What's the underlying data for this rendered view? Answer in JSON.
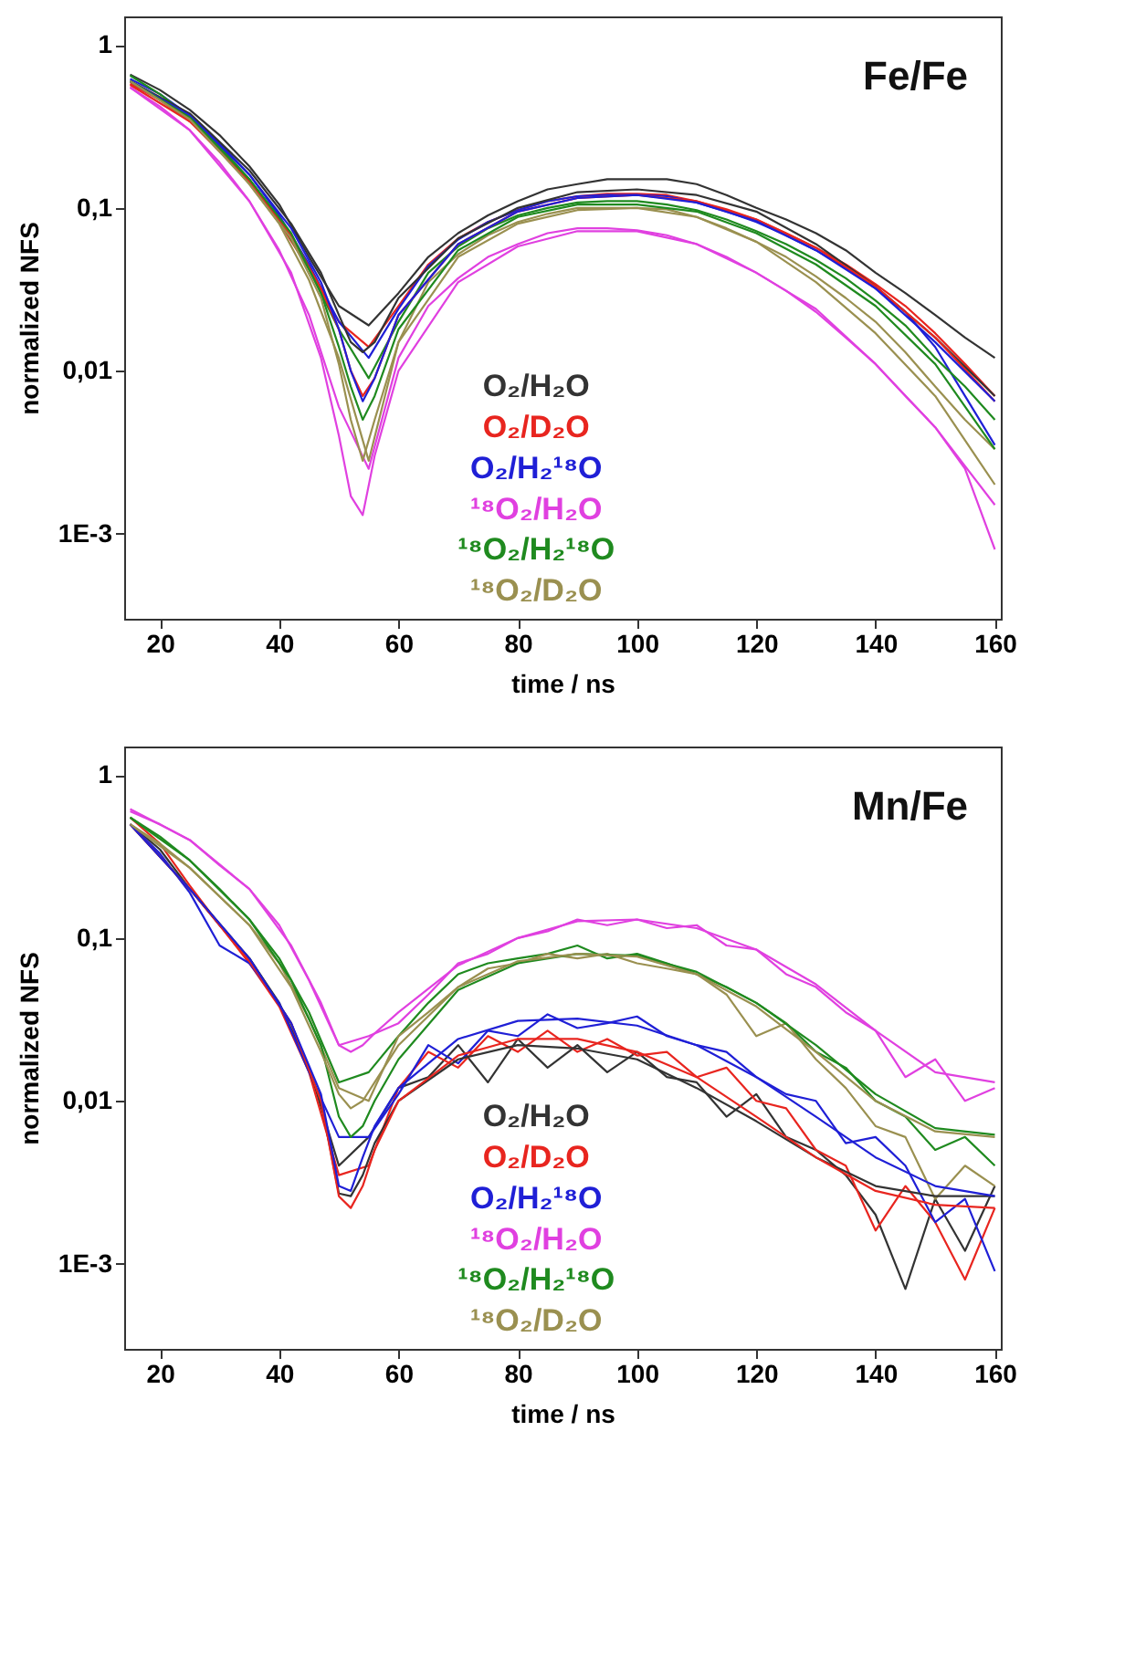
{
  "chart_data": [
    {
      "type": "line",
      "title": "Fe/Fe",
      "xlabel": "time / ns",
      "ylabel": "normalized NFS",
      "log": true,
      "grid": false,
      "xlim": [
        14,
        161
      ],
      "xticks": [
        20,
        40,
        60,
        80,
        100,
        120,
        140,
        160
      ],
      "ylim": [
        0.0003,
        1.5
      ],
      "yticks": [
        {
          "value": 1,
          "label": "1"
        },
        {
          "value": 0.1,
          "label": "0,1"
        },
        {
          "value": 0.01,
          "label": "0,01"
        },
        {
          "value": 0.001,
          "label": "1E-3"
        }
      ],
      "x": [
        15,
        20,
        25,
        30,
        35,
        40,
        45,
        50,
        55,
        60,
        65,
        70,
        75,
        80,
        85,
        90,
        95,
        100,
        105,
        110,
        115,
        120,
        125,
        130,
        135,
        140,
        145,
        150,
        155,
        160
      ],
      "series": [
        {
          "name": "O₂/H₂O",
          "color": "#333333",
          "values": [
            0.66,
            0.53,
            0.4,
            0.28,
            0.18,
            0.105,
            0.05,
            0.025,
            0.019,
            0.03,
            0.05,
            0.07,
            0.09,
            0.11,
            0.13,
            0.14,
            0.15,
            0.15,
            0.15,
            0.14,
            0.12,
            0.1,
            0.085,
            0.07,
            0.055,
            0.04,
            0.03,
            0.022,
            0.016,
            0.012
          ]
        },
        {
          "name": "O₂/D₂O",
          "color": "#e8251f",
          "values": [
            0.58,
            0.46,
            0.34,
            0.23,
            0.145,
            0.082,
            0.042,
            0.02,
            0.014,
            0.025,
            0.045,
            0.065,
            0.082,
            0.097,
            0.11,
            0.118,
            0.122,
            0.122,
            0.12,
            0.11,
            0.098,
            0.085,
            0.07,
            0.057,
            0.045,
            0.034,
            0.025,
            0.017,
            0.011,
            0.007
          ]
        },
        {
          "name": "O₂/H₂¹⁸O",
          "color": "#1f1fd6",
          "values": [
            0.62,
            0.5,
            0.37,
            0.25,
            0.16,
            0.09,
            0.045,
            0.02,
            0.012,
            0.024,
            0.044,
            0.064,
            0.082,
            0.097,
            0.11,
            0.118,
            0.12,
            0.12,
            0.118,
            0.108,
            0.095,
            0.082,
            0.068,
            0.055,
            0.043,
            0.032,
            0.023,
            0.014,
            0.007,
            0.0035
          ]
        },
        {
          "name": "¹⁸O₂/H₂O",
          "color": "#e040e0",
          "values": [
            0.55,
            0.42,
            0.3,
            0.19,
            0.11,
            0.055,
            0.022,
            0.006,
            0.0025,
            0.012,
            0.025,
            0.037,
            0.05,
            0.06,
            0.07,
            0.075,
            0.075,
            0.073,
            0.068,
            0.06,
            0.05,
            0.04,
            0.031,
            0.023,
            0.016,
            0.011,
            0.007,
            0.0045,
            0.0025,
            0.0008
          ]
        },
        {
          "name": "¹⁸O₂/H₂¹⁸O",
          "color": "#1f8a1f",
          "values": [
            0.65,
            0.5,
            0.36,
            0.24,
            0.15,
            0.085,
            0.042,
            0.018,
            0.009,
            0.02,
            0.04,
            0.058,
            0.075,
            0.09,
            0.1,
            0.108,
            0.11,
            0.11,
            0.105,
            0.097,
            0.085,
            0.072,
            0.06,
            0.048,
            0.037,
            0.027,
            0.019,
            0.012,
            0.008,
            0.005
          ]
        },
        {
          "name": "¹⁸O₂/D₂O",
          "color": "#9a9050",
          "values": [
            0.6,
            0.48,
            0.35,
            0.23,
            0.14,
            0.08,
            0.036,
            0.012,
            0.0028,
            0.015,
            0.035,
            0.052,
            0.068,
            0.082,
            0.092,
            0.1,
            0.1,
            0.1,
            0.098,
            0.088,
            0.075,
            0.062,
            0.05,
            0.038,
            0.028,
            0.02,
            0.013,
            0.008,
            0.005,
            0.0033
          ]
        },
        {
          "color": "#333333",
          "x": [
            15,
            25,
            35,
            42,
            47,
            50,
            52,
            54,
            56,
            60,
            70,
            80,
            90,
            100,
            110,
            120,
            130,
            140,
            150,
            160
          ],
          "values": [
            0.6,
            0.38,
            0.17,
            0.08,
            0.04,
            0.022,
            0.015,
            0.013,
            0.015,
            0.028,
            0.065,
            0.1,
            0.125,
            0.13,
            0.12,
            0.095,
            0.06,
            0.033,
            0.016,
            0.007
          ]
        },
        {
          "color": "#e8251f",
          "x": [
            15,
            25,
            35,
            42,
            47,
            50,
            52,
            54,
            56,
            60,
            70,
            80,
            90,
            100,
            110,
            120,
            130,
            140,
            150,
            160
          ],
          "values": [
            0.57,
            0.34,
            0.145,
            0.068,
            0.032,
            0.018,
            0.01,
            0.007,
            0.009,
            0.022,
            0.06,
            0.095,
            0.115,
            0.12,
            0.11,
            0.085,
            0.057,
            0.033,
            0.016,
            0.0065
          ]
        },
        {
          "color": "#1f1fd6",
          "x": [
            15,
            25,
            35,
            42,
            47,
            50,
            52,
            54,
            56,
            60,
            70,
            80,
            90,
            100,
            110,
            120,
            130,
            140,
            150,
            160
          ],
          "values": [
            0.6,
            0.37,
            0.16,
            0.075,
            0.035,
            0.018,
            0.01,
            0.0065,
            0.009,
            0.022,
            0.06,
            0.095,
            0.115,
            0.12,
            0.108,
            0.083,
            0.055,
            0.032,
            0.015,
            0.0065
          ]
        },
        {
          "color": "#e040e0",
          "x": [
            15,
            25,
            35,
            42,
            47,
            50,
            52,
            54,
            56,
            60,
            70,
            80,
            90,
            100,
            110,
            120,
            130,
            140,
            150,
            160
          ],
          "values": [
            0.55,
            0.3,
            0.11,
            0.04,
            0.012,
            0.004,
            0.0017,
            0.0013,
            0.003,
            0.01,
            0.035,
            0.058,
            0.072,
            0.072,
            0.06,
            0.04,
            0.024,
            0.011,
            0.0045,
            0.0015
          ]
        },
        {
          "color": "#1f8a1f",
          "x": [
            15,
            25,
            35,
            42,
            47,
            50,
            52,
            54,
            56,
            60,
            70,
            80,
            90,
            100,
            110,
            120,
            130,
            140,
            150,
            160
          ],
          "values": [
            0.6,
            0.36,
            0.15,
            0.07,
            0.03,
            0.014,
            0.008,
            0.005,
            0.007,
            0.018,
            0.055,
            0.088,
            0.105,
            0.105,
            0.095,
            0.07,
            0.045,
            0.025,
            0.011,
            0.0033
          ]
        },
        {
          "color": "#9a9050",
          "x": [
            15,
            25,
            35,
            42,
            47,
            50,
            52,
            54,
            56,
            60,
            70,
            80,
            90,
            100,
            110,
            120,
            130,
            140,
            150,
            160
          ],
          "values": [
            0.6,
            0.35,
            0.14,
            0.065,
            0.028,
            0.011,
            0.005,
            0.0028,
            0.005,
            0.015,
            0.05,
            0.08,
            0.097,
            0.1,
            0.088,
            0.062,
            0.035,
            0.017,
            0.007,
            0.002
          ]
        }
      ]
    },
    {
      "type": "line",
      "title": "Mn/Fe",
      "xlabel": "time / ns",
      "ylabel": "normalized NFS",
      "log": true,
      "grid": false,
      "xlim": [
        14,
        161
      ],
      "xticks": [
        20,
        40,
        60,
        80,
        100,
        120,
        140,
        160
      ],
      "ylim": [
        0.0003,
        1.5
      ],
      "yticks": [
        {
          "value": 1,
          "label": "1"
        },
        {
          "value": 0.1,
          "label": "0,1"
        },
        {
          "value": 0.01,
          "label": "0,01"
        },
        {
          "value": 0.001,
          "label": "1E-3"
        }
      ],
      "x": [
        15,
        20,
        25,
        30,
        35,
        40,
        45,
        50,
        55,
        60,
        65,
        70,
        75,
        80,
        85,
        90,
        95,
        100,
        105,
        110,
        115,
        120,
        125,
        130,
        135,
        140,
        145,
        150,
        155,
        160
      ],
      "series": [
        {
          "name": "O₂/H₂O",
          "color": "#333333",
          "values": [
            0.5,
            0.35,
            0.2,
            0.12,
            0.075,
            0.04,
            0.016,
            0.004,
            0.006,
            0.012,
            0.014,
            0.022,
            0.013,
            0.024,
            0.016,
            0.022,
            0.015,
            0.02,
            0.014,
            0.013,
            0.008,
            0.011,
            0.006,
            0.005,
            0.0035,
            0.002,
            0.0007,
            0.0025,
            0.0012,
            0.003
          ]
        },
        {
          "name": "O₂/D₂O",
          "color": "#e8251f",
          "values": [
            0.55,
            0.38,
            0.21,
            0.12,
            0.07,
            0.038,
            0.015,
            0.0035,
            0.004,
            0.012,
            0.02,
            0.016,
            0.025,
            0.02,
            0.027,
            0.02,
            0.024,
            0.019,
            0.02,
            0.014,
            0.016,
            0.01,
            0.009,
            0.005,
            0.004,
            0.0016,
            0.003,
            0.0018,
            0.0008,
            0.0022
          ]
        },
        {
          "name": "O₂/H₂¹⁸O",
          "color": "#1f1fd6",
          "values": [
            0.5,
            0.33,
            0.19,
            0.09,
            0.07,
            0.04,
            0.015,
            0.006,
            0.006,
            0.011,
            0.022,
            0.017,
            0.027,
            0.025,
            0.034,
            0.028,
            0.03,
            0.033,
            0.025,
            0.022,
            0.02,
            0.014,
            0.011,
            0.01,
            0.0055,
            0.006,
            0.004,
            0.0018,
            0.0025,
            0.0009
          ]
        },
        {
          "name": "¹⁸O₂/H₂O",
          "color": "#e040e0",
          "values": [
            0.6,
            0.5,
            0.4,
            0.28,
            0.2,
            0.12,
            0.055,
            0.022,
            0.025,
            0.03,
            0.045,
            0.07,
            0.08,
            0.1,
            0.11,
            0.13,
            0.12,
            0.13,
            0.115,
            0.12,
            0.09,
            0.085,
            0.06,
            0.05,
            0.035,
            0.027,
            0.014,
            0.018,
            0.01,
            0.012
          ]
        },
        {
          "name": "¹⁸O₂/H₂¹⁸O",
          "color": "#1f8a1f",
          "values": [
            0.55,
            0.42,
            0.3,
            0.2,
            0.13,
            0.075,
            0.035,
            0.013,
            0.015,
            0.025,
            0.04,
            0.06,
            0.07,
            0.075,
            0.08,
            0.09,
            0.075,
            0.08,
            0.07,
            0.06,
            0.05,
            0.04,
            0.03,
            0.02,
            0.016,
            0.01,
            0.008,
            0.005,
            0.006,
            0.004
          ]
        },
        {
          "name": "¹⁸O₂/D₂O",
          "color": "#9a9050",
          "values": [
            0.5,
            0.38,
            0.27,
            0.18,
            0.12,
            0.07,
            0.032,
            0.012,
            0.01,
            0.025,
            0.035,
            0.05,
            0.065,
            0.07,
            0.08,
            0.075,
            0.08,
            0.07,
            0.065,
            0.06,
            0.045,
            0.025,
            0.03,
            0.018,
            0.012,
            0.007,
            0.006,
            0.0025,
            0.004,
            0.003
          ]
        },
        {
          "color": "#333333",
          "x": [
            15,
            25,
            35,
            42,
            47,
            50,
            52,
            54,
            56,
            60,
            70,
            80,
            90,
            100,
            110,
            120,
            130,
            140,
            150,
            160
          ],
          "values": [
            0.5,
            0.2,
            0.075,
            0.03,
            0.01,
            0.0027,
            0.0026,
            0.0035,
            0.0055,
            0.01,
            0.018,
            0.022,
            0.021,
            0.018,
            0.012,
            0.0075,
            0.0045,
            0.003,
            0.0026,
            0.0026
          ]
        },
        {
          "color": "#e8251f",
          "x": [
            15,
            25,
            35,
            42,
            47,
            50,
            52,
            54,
            56,
            60,
            70,
            80,
            90,
            100,
            110,
            120,
            130,
            140,
            150,
            160
          ],
          "values": [
            0.5,
            0.2,
            0.072,
            0.03,
            0.01,
            0.0026,
            0.0022,
            0.003,
            0.005,
            0.01,
            0.019,
            0.024,
            0.024,
            0.02,
            0.014,
            0.008,
            0.0045,
            0.0028,
            0.0023,
            0.0022
          ]
        },
        {
          "color": "#1f1fd6",
          "x": [
            15,
            25,
            35,
            42,
            47,
            50,
            52,
            54,
            56,
            60,
            70,
            80,
            90,
            100,
            110,
            120,
            130,
            140,
            150,
            160
          ],
          "values": [
            0.5,
            0.2,
            0.075,
            0.03,
            0.011,
            0.003,
            0.0028,
            0.0045,
            0.007,
            0.012,
            0.024,
            0.031,
            0.032,
            0.029,
            0.022,
            0.014,
            0.008,
            0.0045,
            0.003,
            0.0026
          ]
        },
        {
          "color": "#e040e0",
          "x": [
            15,
            25,
            35,
            42,
            47,
            50,
            52,
            54,
            56,
            60,
            70,
            80,
            90,
            100,
            110,
            120,
            130,
            140,
            150,
            160
          ],
          "values": [
            0.62,
            0.4,
            0.2,
            0.09,
            0.04,
            0.022,
            0.02,
            0.022,
            0.026,
            0.035,
            0.068,
            0.1,
            0.127,
            0.13,
            0.115,
            0.085,
            0.052,
            0.027,
            0.015,
            0.013
          ]
        },
        {
          "color": "#1f8a1f",
          "x": [
            15,
            25,
            35,
            42,
            47,
            50,
            52,
            54,
            56,
            60,
            70,
            80,
            90,
            100,
            110,
            120,
            130,
            140,
            150,
            160
          ],
          "values": [
            0.55,
            0.3,
            0.13,
            0.055,
            0.022,
            0.008,
            0.006,
            0.007,
            0.01,
            0.018,
            0.048,
            0.07,
            0.08,
            0.078,
            0.062,
            0.04,
            0.022,
            0.011,
            0.0068,
            0.0062
          ]
        },
        {
          "color": "#9a9050",
          "x": [
            15,
            25,
            35,
            42,
            47,
            50,
            52,
            54,
            56,
            60,
            70,
            80,
            90,
            100,
            110,
            120,
            130,
            140,
            150,
            160
          ],
          "values": [
            0.5,
            0.27,
            0.12,
            0.05,
            0.02,
            0.011,
            0.009,
            0.01,
            0.013,
            0.022,
            0.05,
            0.072,
            0.08,
            0.077,
            0.06,
            0.038,
            0.02,
            0.01,
            0.0065,
            0.006
          ]
        }
      ]
    }
  ]
}
